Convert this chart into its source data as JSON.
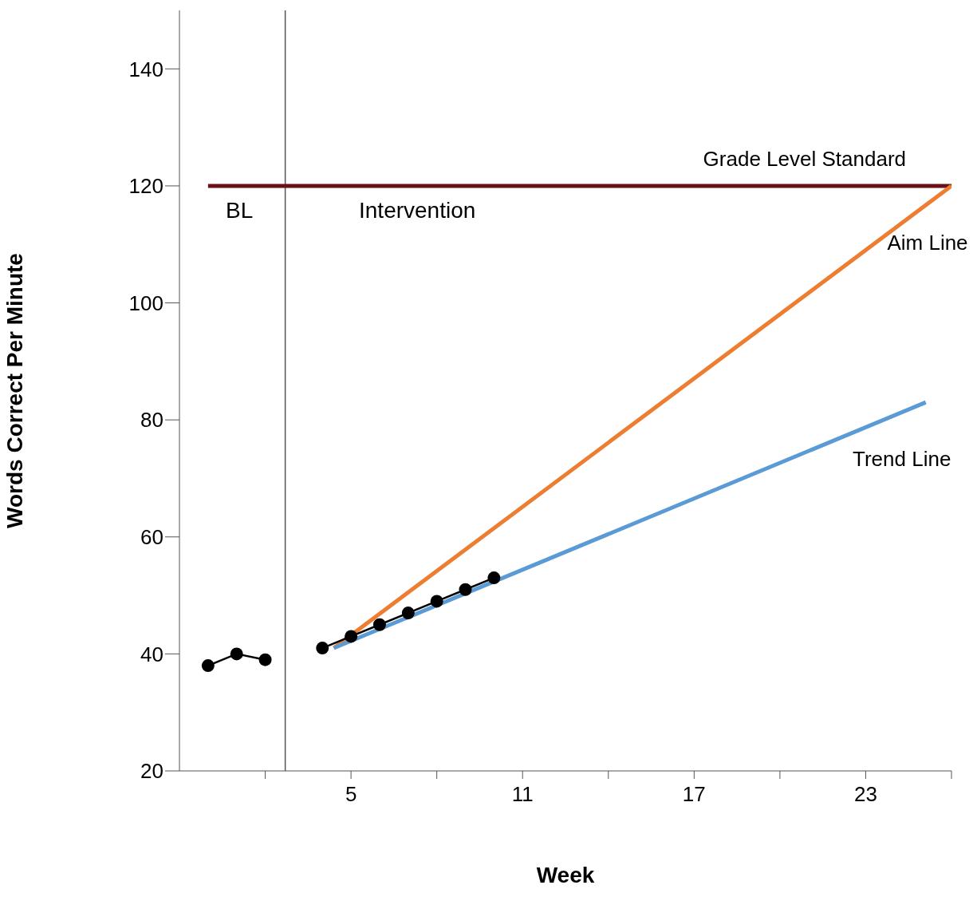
{
  "chart_data": {
    "type": "line",
    "xlabel": "Week",
    "ylabel": "Words Correct Per Minute",
    "xlim": [
      -1,
      26
    ],
    "ylim": [
      20,
      150
    ],
    "xticks": [
      {
        "value": 2,
        "label": null
      },
      5,
      {
        "value": 8,
        "label": null
      },
      11,
      {
        "value": 14,
        "label": null
      },
      17,
      {
        "value": 20,
        "label": null
      },
      23,
      {
        "value": 26,
        "label": null
      }
    ],
    "yticks": [
      20,
      40,
      60,
      80,
      100,
      120,
      140
    ],
    "grid": false,
    "legend": false,
    "series": [
      {
        "x": [
          0,
          26
        ],
        "values": [
          120,
          120
        ],
        "name": "Grade Level Standard",
        "color": "#6b1016",
        "marker": "none"
      },
      {
        "x": [
          4.4,
          26
        ],
        "values": [
          41,
          120
        ],
        "name": "Aim Line",
        "color": "#ed7d31",
        "marker": "none"
      },
      {
        "x": [
          0,
          1,
          2
        ],
        "values": [
          38,
          40,
          39
        ],
        "color": "#000000",
        "marker": "circle"
      },
      {
        "x": [
          4,
          5,
          6,
          7,
          8,
          9,
          10
        ],
        "values": [
          41,
          43,
          45,
          47,
          49,
          51,
          53
        ],
        "color": "#000000",
        "marker": "circle"
      },
      {
        "x": [
          4.4,
          25.1
        ],
        "values": [
          41,
          83
        ],
        "name": "Trend Line",
        "color": "#5b9bd5",
        "marker": "none"
      }
    ],
    "ref_lines": [
      {
        "axis": "x",
        "value": 2.7,
        "color": "#555555"
      }
    ],
    "annotations": [
      "BL",
      "Intervention"
    ]
  }
}
